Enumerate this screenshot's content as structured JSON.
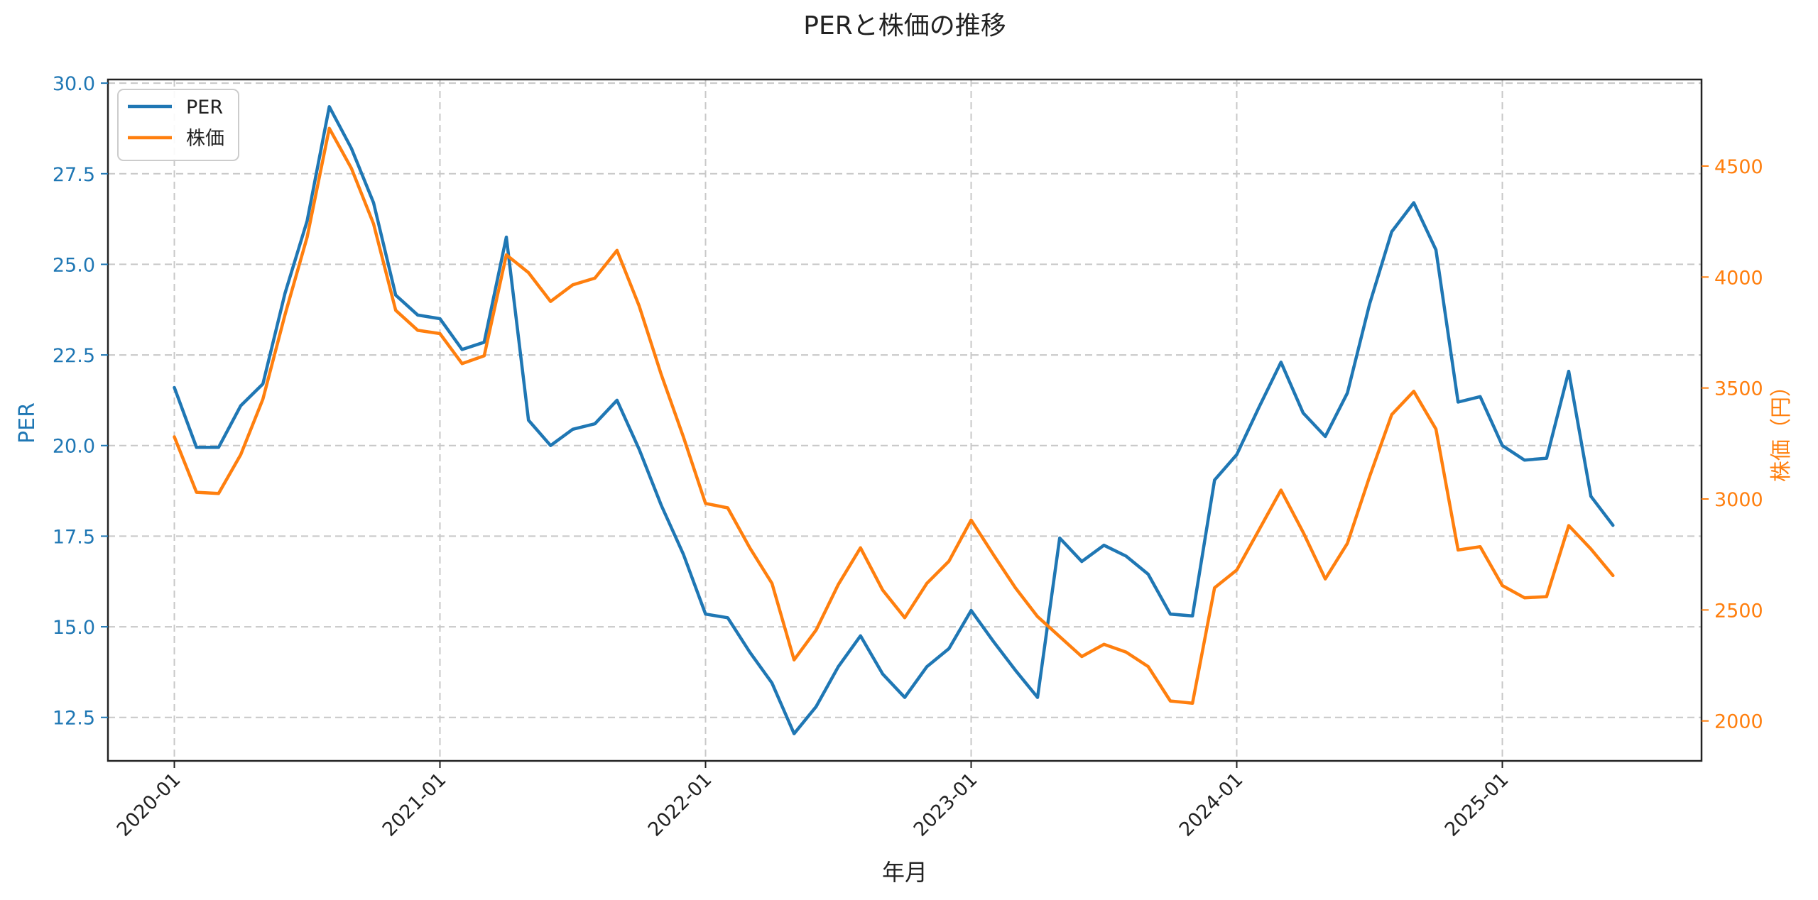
{
  "chart_data": {
    "type": "line",
    "title": "PERと株価の推移",
    "xlabel": "年月",
    "ylabel_left": "PER",
    "ylabel_right": "株価（円）",
    "xlim": [
      -3,
      69
    ],
    "ylim_left": [
      11.3,
      30.1
    ],
    "ylim_right": [
      1820,
      4890
    ],
    "x_ticks": [
      {
        "index": 0,
        "label": "2020-01"
      },
      {
        "index": 12,
        "label": "2021-01"
      },
      {
        "index": 24,
        "label": "2022-01"
      },
      {
        "index": 36,
        "label": "2023-01"
      },
      {
        "index": 48,
        "label": "2024-01"
      },
      {
        "index": 60,
        "label": "2025-01"
      }
    ],
    "y_ticks_left": [
      "12.5",
      "15.0",
      "17.5",
      "20.0",
      "22.5",
      "25.0",
      "27.5",
      "30.0"
    ],
    "y_ticks_right": [
      "2000",
      "2500",
      "3000",
      "3500",
      "4000",
      "4500"
    ],
    "grid": true,
    "legend_position": "top-left",
    "colors": {
      "per": "#1f77b4",
      "price": "#ff7f0e",
      "grid": "#c8c8c8",
      "text": "#222222"
    },
    "series": [
      {
        "name": "PER",
        "axis": "left",
        "color": "#1f77b4",
        "values": [
          21.6,
          19.95,
          19.95,
          21.1,
          21.7,
          24.2,
          26.2,
          29.35,
          28.2,
          26.7,
          24.15,
          23.6,
          23.5,
          22.65,
          22.85,
          25.75,
          20.7,
          20.0,
          20.45,
          20.6,
          21.25,
          19.9,
          18.35,
          17.0,
          15.35,
          15.25,
          14.3,
          13.45,
          12.05,
          12.8,
          13.9,
          14.75,
          13.7,
          13.05,
          13.9,
          14.4,
          15.45,
          14.6,
          13.8,
          13.05,
          17.45,
          16.8,
          17.25,
          16.95,
          16.45,
          15.35,
          15.3,
          19.05,
          19.75,
          21.05,
          22.3,
          20.9,
          20.25,
          21.45,
          23.9,
          25.9,
          26.7,
          25.4,
          21.2,
          21.35,
          20.0,
          19.6,
          19.65,
          22.05,
          18.6,
          17.8
        ]
      },
      {
        "name": "株価",
        "axis": "right",
        "color": "#ff7f0e",
        "values": [
          3280,
          3030,
          3025,
          3200,
          3450,
          3830,
          4180,
          4670,
          4490,
          4240,
          3850,
          3760,
          3745,
          3610,
          3645,
          4100,
          4020,
          3890,
          3965,
          3995,
          4120,
          3870,
          3560,
          3280,
          2980,
          2960,
          2780,
          2620,
          2275,
          2410,
          2615,
          2780,
          2590,
          2465,
          2620,
          2720,
          2905,
          2750,
          2600,
          2470,
          2380,
          2290,
          2345,
          2310,
          2245,
          2090,
          2080,
          2600,
          2680,
          2860,
          3040,
          2850,
          2640,
          2800,
          3100,
          3380,
          3485,
          3315,
          2770,
          2785,
          2610,
          2555,
          2560,
          2880,
          2775,
          2655
        ]
      }
    ]
  }
}
